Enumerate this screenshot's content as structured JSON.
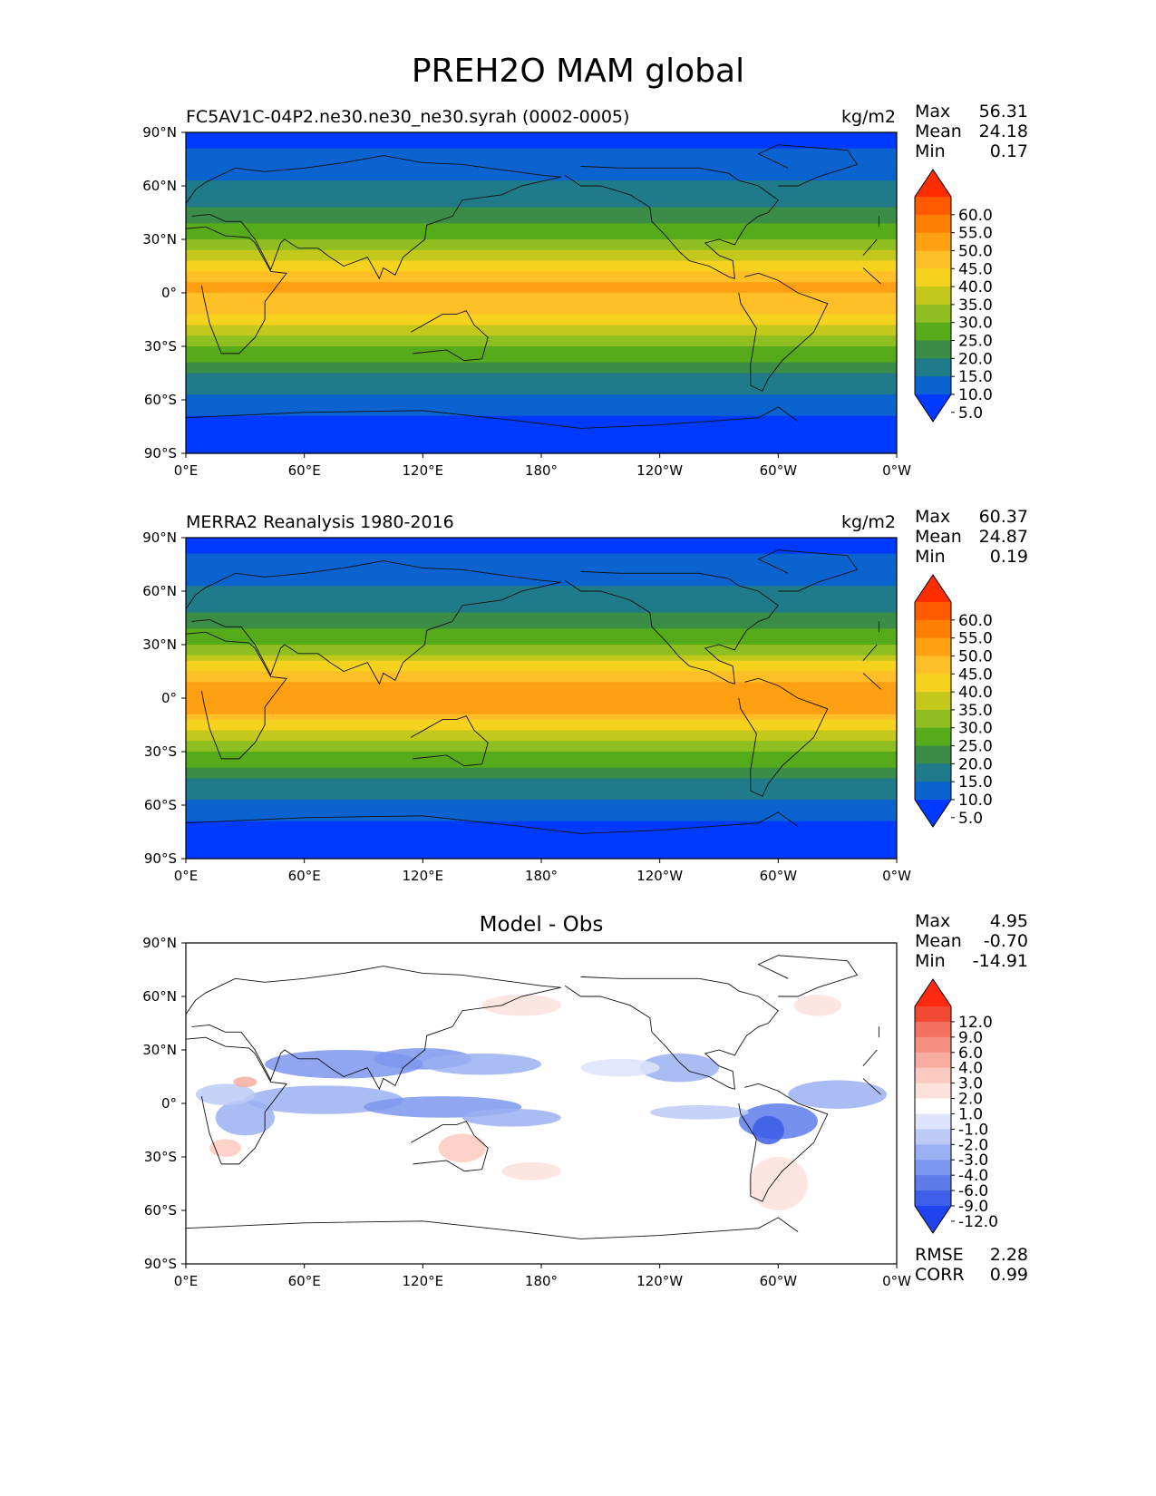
{
  "figure_title": "PREH2O MAM global",
  "chart_data": [
    {
      "type": "heatmap",
      "title": "FC5AV1C-04P2.ne30.ne30_ne30.syrah (0002-0005)",
      "units": "kg/m2",
      "stats": {
        "max": "56.31",
        "mean": "24.18",
        "min": "0.17"
      },
      "x_ticks": [
        "0°E",
        "60°E",
        "120°E",
        "180°",
        "120°W",
        "60°W",
        "0°W"
      ],
      "y_ticks": [
        "90°N",
        "60°N",
        "30°N",
        "0°",
        "30°S",
        "60°S",
        "90°S"
      ],
      "xlim": [
        0,
        360
      ],
      "ylim": [
        -90,
        90
      ],
      "colorbar": {
        "labels": [
          "60.0",
          "55.0",
          "50.0",
          "45.0",
          "40.0",
          "35.0",
          "30.0",
          "25.0",
          "20.0",
          "15.0",
          "10.0",
          "5.0"
        ],
        "colors": [
          "#ff2d00",
          "#ff5a00",
          "#ff7f00",
          "#ff9f12",
          "#ffbf26",
          "#f5d21e",
          "#c4c81a",
          "#8fbe20",
          "#55ab1a",
          "#3a8c46",
          "#1f7a8a",
          "#0a63cf",
          "#0039ff"
        ],
        "extend": "both"
      },
      "zonal_profile": [
        {
          "lat": 90,
          "value": 3
        },
        {
          "lat": 75,
          "value": 6
        },
        {
          "lat": 60,
          "value": 11
        },
        {
          "lat": 45,
          "value": 16
        },
        {
          "lat": 30,
          "value": 24
        },
        {
          "lat": 15,
          "value": 38
        },
        {
          "lat": 5,
          "value": 46
        },
        {
          "lat": -5,
          "value": 44
        },
        {
          "lat": -15,
          "value": 37
        },
        {
          "lat": -30,
          "value": 25
        },
        {
          "lat": -45,
          "value": 15
        },
        {
          "lat": -60,
          "value": 9
        },
        {
          "lat": -70,
          "value": 4
        },
        {
          "lat": -90,
          "value": 2
        }
      ]
    },
    {
      "type": "heatmap",
      "title": "MERRA2 Reanalysis 1980-2016",
      "units": "kg/m2",
      "stats": {
        "max": "60.37",
        "mean": "24.87",
        "min": "0.19"
      },
      "x_ticks": [
        "0°E",
        "60°E",
        "120°E",
        "180°",
        "120°W",
        "60°W",
        "0°W"
      ],
      "y_ticks": [
        "90°N",
        "60°N",
        "30°N",
        "0°",
        "30°S",
        "60°S",
        "90°S"
      ],
      "xlim": [
        0,
        360
      ],
      "ylim": [
        -90,
        90
      ],
      "colorbar": {
        "labels": [
          "60.0",
          "55.0",
          "50.0",
          "45.0",
          "40.0",
          "35.0",
          "30.0",
          "25.0",
          "20.0",
          "15.0",
          "10.0",
          "5.0"
        ],
        "colors": [
          "#ff2d00",
          "#ff5a00",
          "#ff7f00",
          "#ff9f12",
          "#ffbf26",
          "#f5d21e",
          "#c4c81a",
          "#8fbe20",
          "#55ab1a",
          "#3a8c46",
          "#1f7a8a",
          "#0a63cf",
          "#0039ff"
        ],
        "extend": "both"
      },
      "zonal_profile": [
        {
          "lat": 90,
          "value": 3
        },
        {
          "lat": 75,
          "value": 6
        },
        {
          "lat": 60,
          "value": 11
        },
        {
          "lat": 45,
          "value": 16
        },
        {
          "lat": 30,
          "value": 24
        },
        {
          "lat": 15,
          "value": 40
        },
        {
          "lat": 5,
          "value": 50
        },
        {
          "lat": -5,
          "value": 48
        },
        {
          "lat": -15,
          "value": 38
        },
        {
          "lat": -30,
          "value": 25
        },
        {
          "lat": -45,
          "value": 15
        },
        {
          "lat": -60,
          "value": 9
        },
        {
          "lat": -70,
          "value": 4
        },
        {
          "lat": -90,
          "value": 2
        }
      ]
    },
    {
      "type": "heatmap",
      "title": "Model - Obs",
      "stats": {
        "max": "4.95",
        "mean": "-0.70",
        "min": "-14.91"
      },
      "x_ticks": [
        "0°E",
        "60°E",
        "120°E",
        "180°",
        "120°W",
        "60°W",
        "0°W"
      ],
      "y_ticks": [
        "90°N",
        "60°N",
        "30°N",
        "0°",
        "30°S",
        "60°S",
        "90°S"
      ],
      "xlim": [
        0,
        360
      ],
      "ylim": [
        -90,
        90
      ],
      "colorbar": {
        "labels": [
          "12.0",
          "9.0",
          "6.0",
          "4.0",
          "3.0",
          "2.0",
          "1.0",
          "-1.0",
          "-2.0",
          "-3.0",
          "-4.0",
          "-6.0",
          "-9.0",
          "-12.0"
        ],
        "colors": [
          "#ff2a10",
          "#f04a35",
          "#f2705d",
          "#f59080",
          "#f8ada0",
          "#fbcac0",
          "#fde2dc",
          "#ffffff",
          "#dde4fb",
          "#bccaf6",
          "#9bb0f2",
          "#7c97ee",
          "#5d7ce9",
          "#3d5ee8",
          "#1f43f0"
        ],
        "extend": "both"
      },
      "rmse_label": "RMSE",
      "rmse": "2.28",
      "corr_label": "CORR",
      "corr": "0.99"
    }
  ],
  "stat_labels": {
    "max": "Max",
    "mean": "Mean",
    "min": "Min"
  }
}
